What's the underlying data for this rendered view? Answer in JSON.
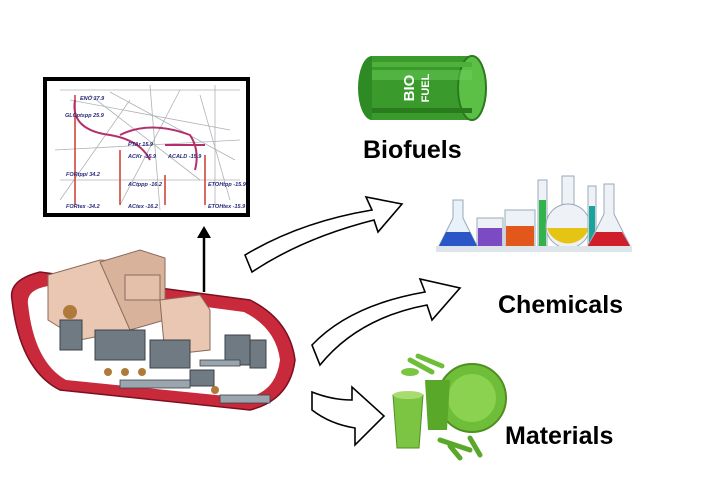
{
  "labels": {
    "biofuels": "Biofuels",
    "chemicals": "Chemicals",
    "materials": "Materials"
  },
  "barrel": {
    "text_line1": "BIO",
    "text_line2": "FUEL",
    "color": "#3a9a2c"
  },
  "metabolic_map": {
    "nodes": [
      "ENO 37.9",
      "GLCptspp 25.9",
      "PTAr 15.9",
      "ACKr -15.9",
      "ACALD -15.9",
      "FORtppi 34.2",
      "ACtppp -16.2",
      "ETOHtpp -15.9",
      "FORtex -34.2",
      "ACtex -16.2",
      "ETOHtex -15.9"
    ]
  },
  "colors": {
    "hull": "#c82a3c",
    "arrow_outline": "#000000",
    "flux_line": "#b5306a"
  }
}
